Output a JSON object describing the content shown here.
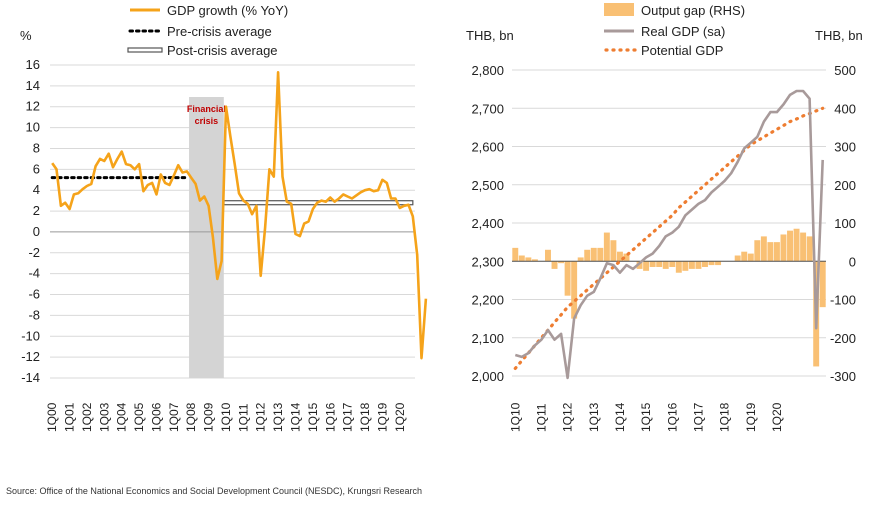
{
  "source": "Source: Office of the National Economics and Social Development Council (NESDC), Krungsri Research",
  "colors": {
    "gdp_growth": "#f5a31a",
    "avg_dots": "#000000",
    "shade": "#d4d4d4",
    "crisis_text": "#c00000",
    "gap_bar": "#f9c074",
    "real_gdp": "#a89a9a",
    "potential": "#ee7d31"
  },
  "chart_data": [
    {
      "type": "line",
      "ylabel": "%",
      "ylim": [
        -14,
        16
      ],
      "yticks": [
        "16",
        "14",
        "12",
        "10",
        "8",
        "6",
        "4",
        "2",
        "0",
        "-2",
        "-4",
        "-6",
        "-8",
        "-10",
        "-12",
        "-14"
      ],
      "xticks": [
        "1Q00",
        "1Q01",
        "1Q02",
        "1Q03",
        "1Q04",
        "1Q05",
        "1Q06",
        "1Q07",
        "1Q08",
        "1Q09",
        "1Q10",
        "1Q11",
        "1Q12",
        "1Q13",
        "1Q14",
        "1Q15",
        "1Q16",
        "1Q17",
        "1Q18",
        "1Q19",
        "1Q20"
      ],
      "legend": [
        "GDP growth (% YoY)",
        "Pre-crisis average",
        "Post-crisis average"
      ],
      "annotation": "Financial crisis",
      "shaded_period": [
        "1Q08",
        "4Q09"
      ],
      "pre_crisis_average": {
        "value": 5.2,
        "from": "1Q00",
        "to": "4Q07"
      },
      "post_crisis_average": {
        "value": 2.8,
        "from": "1Q10",
        "to": "4Q20"
      },
      "series": [
        {
          "values": [
            6.6,
            6.0,
            2.5,
            2.8,
            2.2,
            3.6,
            3.7,
            4.1,
            4.4,
            4.6,
            6.3,
            7.0,
            6.8,
            7.5,
            6.2,
            7.0,
            7.7,
            6.5,
            6.4,
            6.0,
            6.5,
            3.9,
            4.5,
            4.7,
            3.6,
            5.5,
            4.7,
            4.5,
            5.4,
            6.4,
            5.7,
            5.8,
            5.2,
            4.6,
            3.0,
            3.4,
            2.5,
            -0.5,
            -4.5,
            -2.8,
            12.0,
            9.2,
            6.5,
            3.7,
            3.0,
            2.7,
            1.7,
            2.5,
            -4.2,
            0.4,
            6.0,
            5.3,
            15.3,
            5.3,
            2.9,
            2.7,
            -0.2,
            -0.4,
            0.8,
            1.0,
            2.2,
            2.8,
            3.0,
            2.9,
            3.3,
            2.9,
            3.2,
            3.6,
            3.4,
            3.2,
            3.5,
            3.8,
            4.0,
            4.1,
            3.9,
            4.0,
            5.0,
            4.7,
            3.2,
            3.2,
            2.3,
            2.5,
            2.6,
            1.5,
            -2.2,
            -12.1,
            -6.4
          ]
        }
      ]
    },
    {
      "type": "bar+line",
      "ylabel_left": "THB, bn",
      "ylabel_right": "THB, bn",
      "ylim_left": [
        2000,
        2800
      ],
      "ylim_right": [
        -300,
        500
      ],
      "yticks_left": [
        "2,800",
        "2,700",
        "2,600",
        "2,500",
        "2,400",
        "2,300",
        "2,200",
        "2,100",
        "2,000"
      ],
      "yticks_right": [
        "500",
        "400",
        "300",
        "200",
        "100",
        "0",
        "-100",
        "-200",
        "-300"
      ],
      "xticks": [
        "1Q10",
        "1Q11",
        "1Q12",
        "1Q13",
        "1Q14",
        "1Q15",
        "1Q16",
        "1Q17",
        "1Q18",
        "1Q19",
        "1Q20"
      ],
      "legend": [
        "Output gap (RHS)",
        "Real GDP (sa)",
        "Potential GDP"
      ],
      "series": [
        {
          "name": "Output gap (RHS)",
          "axis": "right",
          "values": [
            35,
            15,
            10,
            5,
            0,
            30,
            -20,
            -5,
            -90,
            -150,
            10,
            30,
            35,
            35,
            75,
            55,
            25,
            20,
            0,
            -20,
            -25,
            -15,
            -15,
            -20,
            -15,
            -30,
            -25,
            -20,
            -20,
            -15,
            -10,
            -10,
            0,
            0,
            15,
            25,
            20,
            55,
            65,
            50,
            50,
            70,
            80,
            85,
            75,
            65,
            -275,
            -120
          ]
        },
        {
          "name": "Real GDP (sa)",
          "axis": "left",
          "values": [
            2055,
            2050,
            2060,
            2080,
            2095,
            2120,
            2095,
            2110,
            1995,
            2150,
            2185,
            2210,
            2220,
            2255,
            2295,
            2290,
            2270,
            2290,
            2280,
            2295,
            2310,
            2320,
            2340,
            2365,
            2375,
            2390,
            2420,
            2435,
            2450,
            2460,
            2480,
            2495,
            2510,
            2530,
            2560,
            2595,
            2610,
            2625,
            2665,
            2690,
            2690,
            2710,
            2735,
            2745,
            2745,
            2725,
            2125,
            2565
          ]
        },
        {
          "name": "Potential GDP",
          "axis": "left",
          "values": [
            2020,
            2040,
            2060,
            2080,
            2100,
            2120,
            2140,
            2160,
            2180,
            2195,
            2210,
            2225,
            2240,
            2255,
            2270,
            2285,
            2300,
            2315,
            2330,
            2345,
            2360,
            2375,
            2390,
            2405,
            2420,
            2440,
            2455,
            2470,
            2485,
            2500,
            2515,
            2530,
            2545,
            2560,
            2575,
            2590,
            2605,
            2615,
            2625,
            2635,
            2645,
            2655,
            2665,
            2672,
            2680,
            2686,
            2693,
            2700
          ]
        }
      ]
    }
  ]
}
